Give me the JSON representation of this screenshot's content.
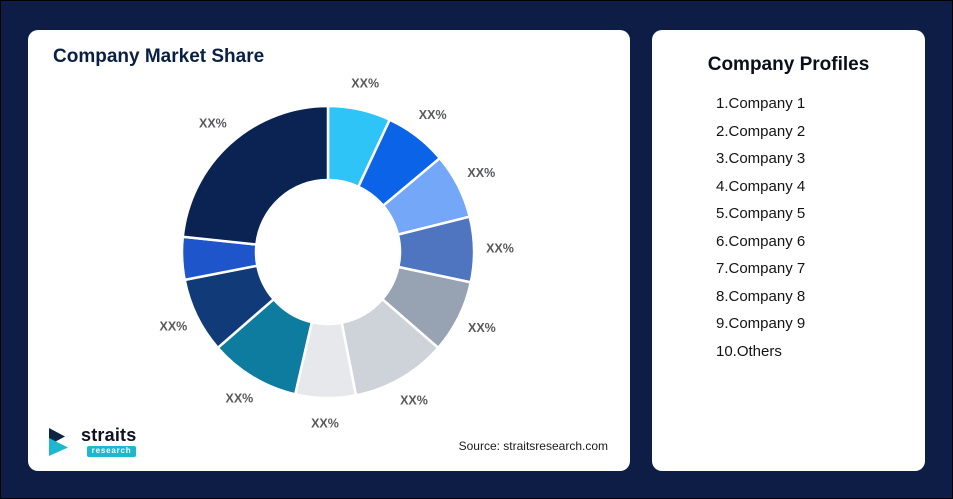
{
  "page": {
    "background_color": "#0D1D45",
    "source_text": "Source: straitsresearch.com"
  },
  "logo": {
    "brand": "straits",
    "brand_sub": "research",
    "accent_color": "#1FB7CE",
    "dark_color": "#0B2545"
  },
  "market_share_card": {
    "title": "Company Market Share"
  },
  "profiles_card": {
    "title": "Company Profiles",
    "items": [
      "1.Company 1",
      "2.Company 2",
      "3.Company 3",
      "4.Company 4",
      "5.Company 5",
      "6.Company 6",
      "7.Company 7",
      "8.Company 8",
      "9.Company 9",
      "10.Others"
    ]
  },
  "chart_data": {
    "type": "pie",
    "subtype": "donut",
    "title": "Company Market Share",
    "value_label_placeholder": "XX%",
    "categories": [
      "Company 1",
      "Company 2",
      "Company 3",
      "Company 4",
      "Company 5",
      "Company 6",
      "Company 7",
      "Company 8",
      "Company 9",
      "Others"
    ],
    "legend_position": "separate right card titled Company Profiles",
    "start_angle_deg": 0,
    "direction": "clockwise",
    "segments": [
      {
        "label": "XX%",
        "color": "#2FC4F7",
        "degrees": 25,
        "value_pct_est": 6.9
      },
      {
        "label": "XX%",
        "color": "#0B63E8",
        "degrees": 25,
        "value_pct_est": 6.9
      },
      {
        "label": "XX%",
        "color": "#74A7F8",
        "degrees": 26,
        "value_pct_est": 7.2
      },
      {
        "label": "XX%",
        "color": "#4F74C0",
        "degrees": 26,
        "value_pct_est": 7.2
      },
      {
        "label": "XX%",
        "color": "#97A2B2",
        "degrees": 29,
        "value_pct_est": 8.1
      },
      {
        "label": "XX%",
        "color": "#CED3DA",
        "degrees": 38,
        "value_pct_est": 10.6
      },
      {
        "label": "XX%",
        "color": "#E6E8EC",
        "degrees": 24,
        "value_pct_est": 6.7
      },
      {
        "label": "XX%",
        "color": "#0E7C9E",
        "degrees": 36,
        "value_pct_est": 10.0
      },
      {
        "label": "XX%",
        "color": "#113B78",
        "degrees": 30,
        "value_pct_est": 8.3
      },
      {
        "label": "",
        "color": "#1F55CB",
        "degrees": 17,
        "value_pct_est": 4.7
      },
      {
        "label": "XX%",
        "color": "#0A2353",
        "degrees": 84,
        "value_pct_est": 23.3
      }
    ]
  }
}
